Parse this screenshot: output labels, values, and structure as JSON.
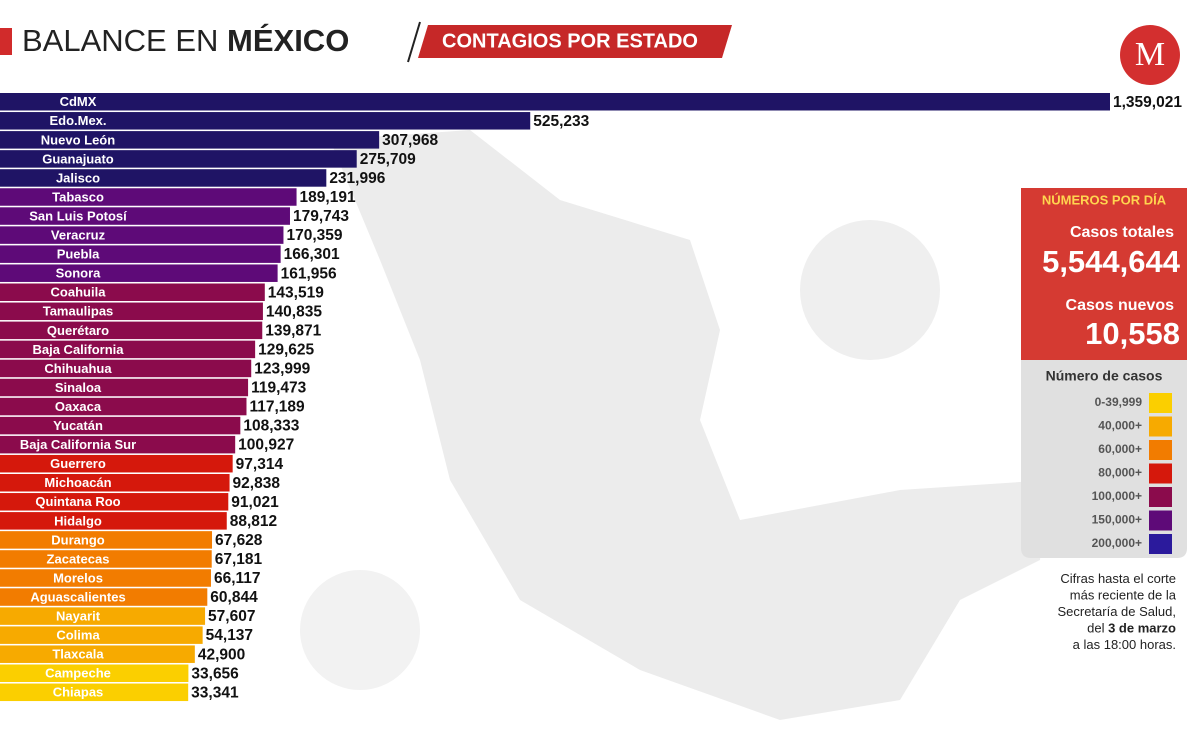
{
  "header": {
    "title_parts": [
      "BALANCE EN ",
      "MÉXICO"
    ],
    "subtitle": "CONTAGIOS POR ESTADO"
  },
  "chart_data": {
    "type": "bar",
    "orientation": "horizontal",
    "categories": [
      "CdMX",
      "Edo.Mex.",
      "Nuevo León",
      "Guanajuato",
      "Jalisco",
      "Tabasco",
      "San Luis Potosí",
      "Veracruz",
      "Puebla",
      "Sonora",
      "Coahuila",
      "Tamaulipas",
      "Querétaro",
      "Baja California",
      "Chihuahua",
      "Sinaloa",
      "Oaxaca",
      "Yucatán",
      "Baja California Sur",
      "Guerrero",
      "Michoacán",
      "Quintana Roo",
      "Hidalgo",
      "Durango",
      "Zacatecas",
      "Morelos",
      "Aguascalientes",
      "Nayarit",
      "Colima",
      "Tlaxcala",
      "Campeche",
      "Chiapas"
    ],
    "values": [
      1359021,
      525233,
      307968,
      275709,
      231996,
      189191,
      179743,
      170359,
      166301,
      161956,
      143519,
      140835,
      139871,
      129625,
      123999,
      119473,
      117189,
      108333,
      100927,
      97314,
      92838,
      91021,
      88812,
      67628,
      67181,
      66117,
      60844,
      57607,
      54137,
      42900,
      33656,
      33341
    ],
    "value_labels": [
      "1,359,021",
      "525,233",
      "307,968",
      "275,709",
      "231,996",
      "189,191",
      "179,743",
      "170,359",
      "166,301",
      "161,956",
      "143,519",
      "140,835",
      "139,871",
      "129,625",
      "123,999",
      "119,473",
      "117,189",
      "108,333",
      "100,927",
      "97,314",
      "92,838",
      "91,021",
      "88,812",
      "67,628",
      "67,181",
      "66,117",
      "60,844",
      "57,607",
      "54,137",
      "42,900",
      "33,656",
      "33,341"
    ],
    "colors": [
      "#1f1465",
      "#1f1465",
      "#1f1465",
      "#1f1465",
      "#1f1465",
      "#5e0a78",
      "#5e0a78",
      "#5e0a78",
      "#5e0a78",
      "#5e0a78",
      "#8b0b4c",
      "#8b0b4c",
      "#8b0b4c",
      "#8b0b4c",
      "#8b0b4c",
      "#8b0b4c",
      "#8b0b4c",
      "#8b0b4c",
      "#8b0b4c",
      "#d5180c",
      "#d5180c",
      "#d5180c",
      "#d5180c",
      "#f27c00",
      "#f27c00",
      "#f27c00",
      "#f27c00",
      "#f7aa00",
      "#f7aa00",
      "#f7aa00",
      "#fbcf00",
      "#fbcf00"
    ]
  },
  "panel": {
    "title": "NÚMEROS POR DÍA",
    "total_label": "Casos totales",
    "total_value": "5,544,644",
    "new_label": "Casos nuevos",
    "new_value": "10,558"
  },
  "legend": {
    "title": "Número de casos",
    "items": [
      {
        "label": "0-39,999",
        "color": "#fbcf00"
      },
      {
        "label": "40,000+",
        "color": "#f7aa00"
      },
      {
        "label": "60,000+",
        "color": "#f27c00"
      },
      {
        "label": "80,000+",
        "color": "#d5180c"
      },
      {
        "label": "100,000+",
        "color": "#8b0b4c"
      },
      {
        "label": "150,000+",
        "color": "#5e0a78"
      },
      {
        "label": "200,000+",
        "color": "#2b1a9c"
      }
    ]
  },
  "note": {
    "lines": [
      [
        "Cifras hasta el corte"
      ],
      [
        "más reciente de la"
      ],
      [
        "Secretaría de Salud,"
      ],
      [
        "del ",
        "3 de marzo"
      ],
      [
        "a las 18:00 horas."
      ]
    ]
  },
  "logo": "M"
}
